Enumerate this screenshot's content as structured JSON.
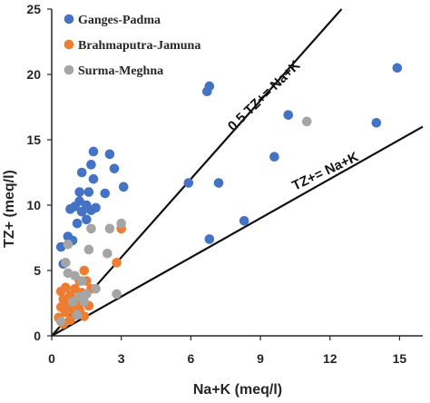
{
  "chart_data": {
    "type": "scatter",
    "title": "",
    "xlabel": "Na+K (meq/l)",
    "ylabel": "TZ+ (meq/l)",
    "xlim": [
      0,
      16
    ],
    "ylim": [
      0,
      25
    ],
    "xticks": [
      "0",
      "3",
      "6",
      "9",
      "12",
      "15"
    ],
    "yticks": [
      "0",
      "5",
      "10",
      "15",
      "20",
      "25"
    ],
    "grid": false,
    "legend_position": "top-left",
    "series": [
      {
        "name": "Ganges-Padma",
        "color": "#4472C4",
        "points": [
          [
            0.4,
            6.8
          ],
          [
            0.5,
            5.5
          ],
          [
            0.7,
            7.6
          ],
          [
            0.8,
            9.7
          ],
          [
            0.9,
            7.3
          ],
          [
            1.0,
            9.9
          ],
          [
            1.1,
            8.6
          ],
          [
            1.2,
            10.3
          ],
          [
            1.2,
            11.0
          ],
          [
            1.3,
            12.5
          ],
          [
            1.3,
            9.5
          ],
          [
            1.5,
            10.0
          ],
          [
            1.5,
            8.9
          ],
          [
            1.6,
            11.0
          ],
          [
            1.7,
            9.6
          ],
          [
            1.7,
            13.1
          ],
          [
            1.8,
            14.1
          ],
          [
            1.8,
            12.0
          ],
          [
            1.9,
            9.8
          ],
          [
            2.3,
            10.9
          ],
          [
            2.5,
            13.9
          ],
          [
            2.7,
            12.8
          ],
          [
            3.1,
            11.4
          ],
          [
            5.9,
            11.7
          ],
          [
            6.7,
            18.7
          ],
          [
            6.8,
            19.1
          ],
          [
            6.8,
            7.4
          ],
          [
            7.2,
            11.7
          ],
          [
            8.3,
            8.8
          ],
          [
            9.6,
            13.7
          ],
          [
            10.2,
            16.9
          ],
          [
            14.0,
            16.3
          ],
          [
            14.9,
            20.5
          ]
        ]
      },
      {
        "name": "Brahmaputra-Jamuna",
        "color": "#ED7D31",
        "points": [
          [
            0.3,
            1.4
          ],
          [
            0.4,
            2.2
          ],
          [
            0.4,
            3.4
          ],
          [
            0.5,
            0.9
          ],
          [
            0.5,
            2.8
          ],
          [
            0.6,
            1.8
          ],
          [
            0.6,
            3.7
          ],
          [
            0.7,
            2.4
          ],
          [
            0.8,
            3.1
          ],
          [
            0.8,
            1.2
          ],
          [
            0.9,
            2.1
          ],
          [
            1.0,
            3.6
          ],
          [
            1.0,
            1.6
          ],
          [
            1.1,
            2.6
          ],
          [
            1.2,
            4.2
          ],
          [
            1.2,
            2.0
          ],
          [
            1.3,
            3.3
          ],
          [
            1.4,
            5.0
          ],
          [
            1.4,
            1.5
          ],
          [
            1.5,
            4.2
          ],
          [
            1.6,
            2.3
          ],
          [
            1.7,
            3.6
          ],
          [
            2.8,
            5.6
          ],
          [
            3.0,
            8.2
          ]
        ]
      },
      {
        "name": "Surma-Meghna",
        "color": "#A5A5A5",
        "points": [
          [
            0.4,
            1.1
          ],
          [
            0.6,
            5.6
          ],
          [
            0.7,
            4.8
          ],
          [
            0.7,
            7.0
          ],
          [
            0.9,
            2.6
          ],
          [
            1.0,
            4.6
          ],
          [
            1.1,
            1.6
          ],
          [
            1.2,
            3.0
          ],
          [
            1.3,
            4.2
          ],
          [
            1.4,
            2.6
          ],
          [
            1.5,
            3.2
          ],
          [
            1.6,
            6.6
          ],
          [
            1.7,
            8.2
          ],
          [
            1.9,
            3.6
          ],
          [
            2.4,
            6.3
          ],
          [
            2.5,
            8.2
          ],
          [
            2.8,
            3.2
          ],
          [
            3.0,
            8.6
          ],
          [
            11.0,
            16.4
          ]
        ]
      }
    ],
    "reference_lines": [
      {
        "label": "0.5 TZ+= Na+K",
        "slope": 2,
        "intercept": 0
      },
      {
        "label": "TZ+= Na+K",
        "slope": 1,
        "intercept": 0
      }
    ]
  }
}
